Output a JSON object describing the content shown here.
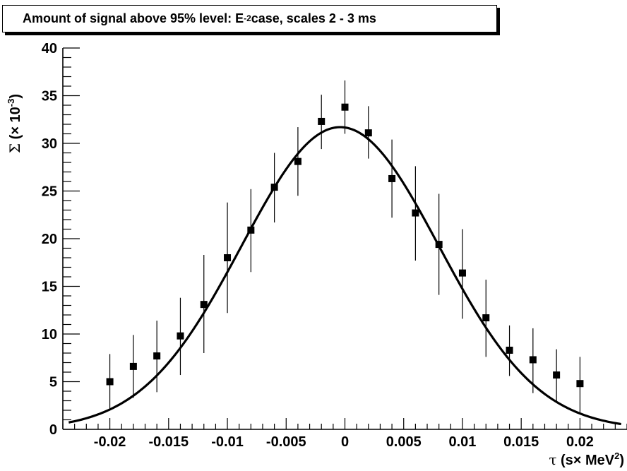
{
  "chart_data": {
    "type": "scatter",
    "title": {
      "prefix": "Amount of signal above 95% level: E",
      "superscript": "-2",
      "suffix": " case, scales 2 - 3 ms"
    },
    "xlabel": {
      "symbol": "τ",
      "text": " (s× MeV",
      "superscript": "2",
      "suffix": ")"
    },
    "ylabel": {
      "symbol": "Σ",
      "text": " (× 10",
      "superscript": "-3",
      "suffix": ")"
    },
    "xlim": [
      -0.024,
      0.024
    ],
    "ylim": [
      0,
      40
    ],
    "xticks": [
      -0.02,
      -0.015,
      -0.01,
      -0.005,
      0,
      0.005,
      0.01,
      0.015,
      0.02
    ],
    "xtick_labels": [
      "-0.02",
      "-0.015",
      "-0.01",
      "-0.005",
      "0",
      "0.005",
      "0.01",
      "0.015",
      "0.02"
    ],
    "yticks": [
      0,
      5,
      10,
      15,
      20,
      25,
      30,
      35,
      40
    ],
    "ytick_labels": [
      "0",
      "5",
      "10",
      "15",
      "20",
      "25",
      "30",
      "35",
      "40"
    ],
    "grid": false,
    "series": [
      {
        "kind": "points-with-error-bars",
        "marker": "filled-square",
        "color": "#000000",
        "points": [
          {
            "x": -0.02,
            "y": 5.0,
            "ylo": 2.1,
            "yhi": 7.9
          },
          {
            "x": -0.018,
            "y": 6.6,
            "ylo": 3.3,
            "yhi": 9.9
          },
          {
            "x": -0.016,
            "y": 7.7,
            "ylo": 3.9,
            "yhi": 11.4
          },
          {
            "x": -0.014,
            "y": 9.8,
            "ylo": 5.7,
            "yhi": 13.8
          },
          {
            "x": -0.012,
            "y": 13.1,
            "ylo": 8.0,
            "yhi": 18.3
          },
          {
            "x": -0.01,
            "y": 18.0,
            "ylo": 12.2,
            "yhi": 23.8
          },
          {
            "x": -0.008,
            "y": 20.9,
            "ylo": 16.5,
            "yhi": 25.2
          },
          {
            "x": -0.006,
            "y": 25.4,
            "ylo": 21.7,
            "yhi": 29.0
          },
          {
            "x": -0.004,
            "y": 28.1,
            "ylo": 24.5,
            "yhi": 31.7
          },
          {
            "x": -0.002,
            "y": 32.3,
            "ylo": 29.4,
            "yhi": 35.1
          },
          {
            "x": 0.0,
            "y": 33.8,
            "ylo": 31.0,
            "yhi": 36.6
          },
          {
            "x": 0.002,
            "y": 31.1,
            "ylo": 28.4,
            "yhi": 33.9
          },
          {
            "x": 0.004,
            "y": 26.3,
            "ylo": 22.2,
            "yhi": 30.4
          },
          {
            "x": 0.006,
            "y": 22.7,
            "ylo": 17.7,
            "yhi": 27.6
          },
          {
            "x": 0.008,
            "y": 19.4,
            "ylo": 14.1,
            "yhi": 24.7
          },
          {
            "x": 0.01,
            "y": 16.4,
            "ylo": 11.6,
            "yhi": 21.0
          },
          {
            "x": 0.012,
            "y": 11.7,
            "ylo": 7.6,
            "yhi": 15.7
          },
          {
            "x": 0.014,
            "y": 8.3,
            "ylo": 5.6,
            "yhi": 10.9
          },
          {
            "x": 0.016,
            "y": 7.3,
            "ylo": 3.8,
            "yhi": 10.6
          },
          {
            "x": 0.018,
            "y": 5.7,
            "ylo": 2.9,
            "yhi": 8.4
          },
          {
            "x": 0.02,
            "y": 4.8,
            "ylo": 1.8,
            "yhi": 7.6
          }
        ]
      },
      {
        "kind": "fit-curve",
        "shape": "gaussian",
        "color": "#000000",
        "amplitude": 31.7,
        "mean": -0.0004,
        "sigma": 0.0084
      }
    ]
  }
}
